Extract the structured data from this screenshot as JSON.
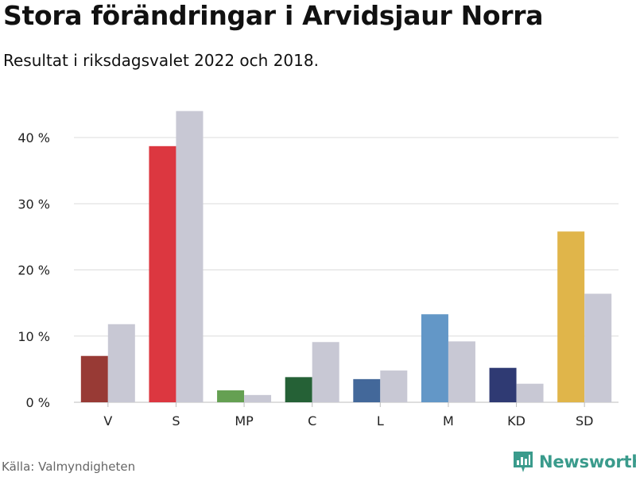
{
  "title": "Stora förändringar i Arvidsjaur Norra",
  "subtitle": "Resultat i riksdagsvalet 2022 och 2018.",
  "source": "Källa: Valmyndigheten",
  "brand": {
    "name": "Newsworthy",
    "icon": "newsworthy-logo-icon",
    "color": "#3a9b8c"
  },
  "chart_data": {
    "type": "bar",
    "categories": [
      "V",
      "S",
      "MP",
      "C",
      "L",
      "M",
      "KD",
      "SD"
    ],
    "series": [
      {
        "values": [
          7.0,
          38.7,
          1.8,
          3.8,
          3.5,
          13.3,
          5.2,
          25.8
        ],
        "colors": [
          "#983a35",
          "#dc3740",
          "#65a052",
          "#256136",
          "#43689a",
          "#6397c7",
          "#2f3a73",
          "#e0b54a"
        ]
      },
      {
        "values": [
          11.8,
          44.0,
          1.1,
          9.1,
          4.8,
          9.2,
          2.8,
          16.4
        ],
        "color": "#c8c8d4"
      }
    ],
    "yticks": [
      "0 %",
      "10 %",
      "20 %",
      "30 %",
      "40 %"
    ],
    "ytick_values": [
      0,
      10,
      20,
      30,
      40
    ],
    "ylim": [
      0,
      45
    ],
    "grid": true
  }
}
